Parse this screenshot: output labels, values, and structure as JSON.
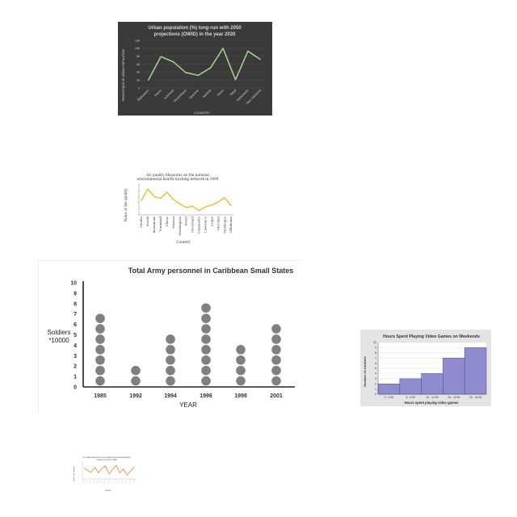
{
  "charts": {
    "urban": {
      "type": "line",
      "title_line1": "Urban population (%) long-run with 2050",
      "title_line2": "projections (OWID) in the year 2020",
      "xlabel": "COUNTRY",
      "ylabel": "PERCENTAGE OF URBAN POPULATION",
      "ylim": [
        0,
        120
      ],
      "yticks": [
        "0",
        "20",
        "40",
        "60",
        "80",
        "100",
        "120"
      ],
      "categories": [
        "Afghanistan",
        "Macao",
        "Indonesia",
        "Mozambique",
        "Myanmar",
        "Namibia",
        "Nauru",
        "Nepal",
        "Netherlands",
        "New Caledonia"
      ],
      "values": [
        20,
        79,
        66,
        39,
        32,
        51,
        100,
        21,
        93,
        72
      ],
      "colors": {
        "background": "#3a3a3a",
        "line": "#9fd08a",
        "text": "#d8d8d8"
      }
    },
    "air": {
      "type": "line",
      "title_line1": "Air quality Measures on the national",
      "title_line2": "environmental health tracking network in 1999",
      "xlabel": "Country",
      "ylabel": "Value of the quality",
      "categories": [
        "Pueblo",
        "Worth",
        "Beaumont",
        "Trumbull",
        "Ulster",
        "Warren",
        "Washington",
        "Wood",
        "Cleveland",
        "Comanche",
        "Lawrence",
        "Logan",
        "McClain",
        "Muskogee",
        "Oklahoma"
      ],
      "values": [
        10.3,
        12.2,
        11.0,
        10.7,
        11.7,
        10.5,
        9.8,
        9.2,
        9.4,
        8.7,
        9.3,
        9.6,
        10.1,
        10.8,
        9.5
      ],
      "ylim": [
        8,
        13
      ],
      "colors": {
        "line": "#f2b400"
      }
    },
    "army": {
      "type": "pictograph",
      "title": "Total Army personnel in Caribbean Small States",
      "xlabel": "YEAR",
      "ylabel_line1": "Soldiers",
      "ylabel_line2": "*10000",
      "yticks": [
        "0",
        "1",
        "2",
        "3",
        "4",
        "5",
        "6",
        "7",
        "8",
        "9",
        "10"
      ],
      "ylim": [
        0,
        10
      ],
      "categories": [
        "1985",
        "1992",
        "1994",
        "1996",
        "1998",
        "2001"
      ],
      "values": [
        7,
        2,
        5,
        8,
        4,
        6
      ],
      "colors": {
        "dot": "#808080",
        "axis": "#222222"
      }
    },
    "games": {
      "type": "bar",
      "title": "Hours Spent Playing Video Games on Weekends",
      "xlabel": "Hours spent playing video games",
      "ylabel": "Number of students",
      "categories": [
        "0 - 4.99",
        "5 - 9.99",
        "10 - 14.99",
        "15 - 19.99",
        "20 - 24.99"
      ],
      "values": [
        2,
        3,
        4,
        7,
        9
      ],
      "ylim": [
        0,
        10
      ],
      "yticks": [
        "0",
        "1",
        "2",
        "3",
        "4",
        "5",
        "6",
        "7",
        "8",
        "9",
        "10"
      ],
      "colors": {
        "bar": "#8f8bcf",
        "background": "#e4e4e4"
      }
    },
    "air_small": {
      "type": "line",
      "title_line1": "Air quality Measures on the national environmental health",
      "title_line2": "tracking network in 1999",
      "xlabel": "Country",
      "ylabel": "Value of the quality",
      "values": [
        10.5,
        10.0,
        9.7,
        10.6,
        9.6,
        10.4,
        10.8,
        9.4,
        10.2,
        10.9,
        9.6,
        10.3,
        9.2,
        9.9,
        10.6
      ],
      "ylim": [
        8.5,
        11.5
      ],
      "colors": {
        "line": "#e8883a"
      }
    }
  }
}
